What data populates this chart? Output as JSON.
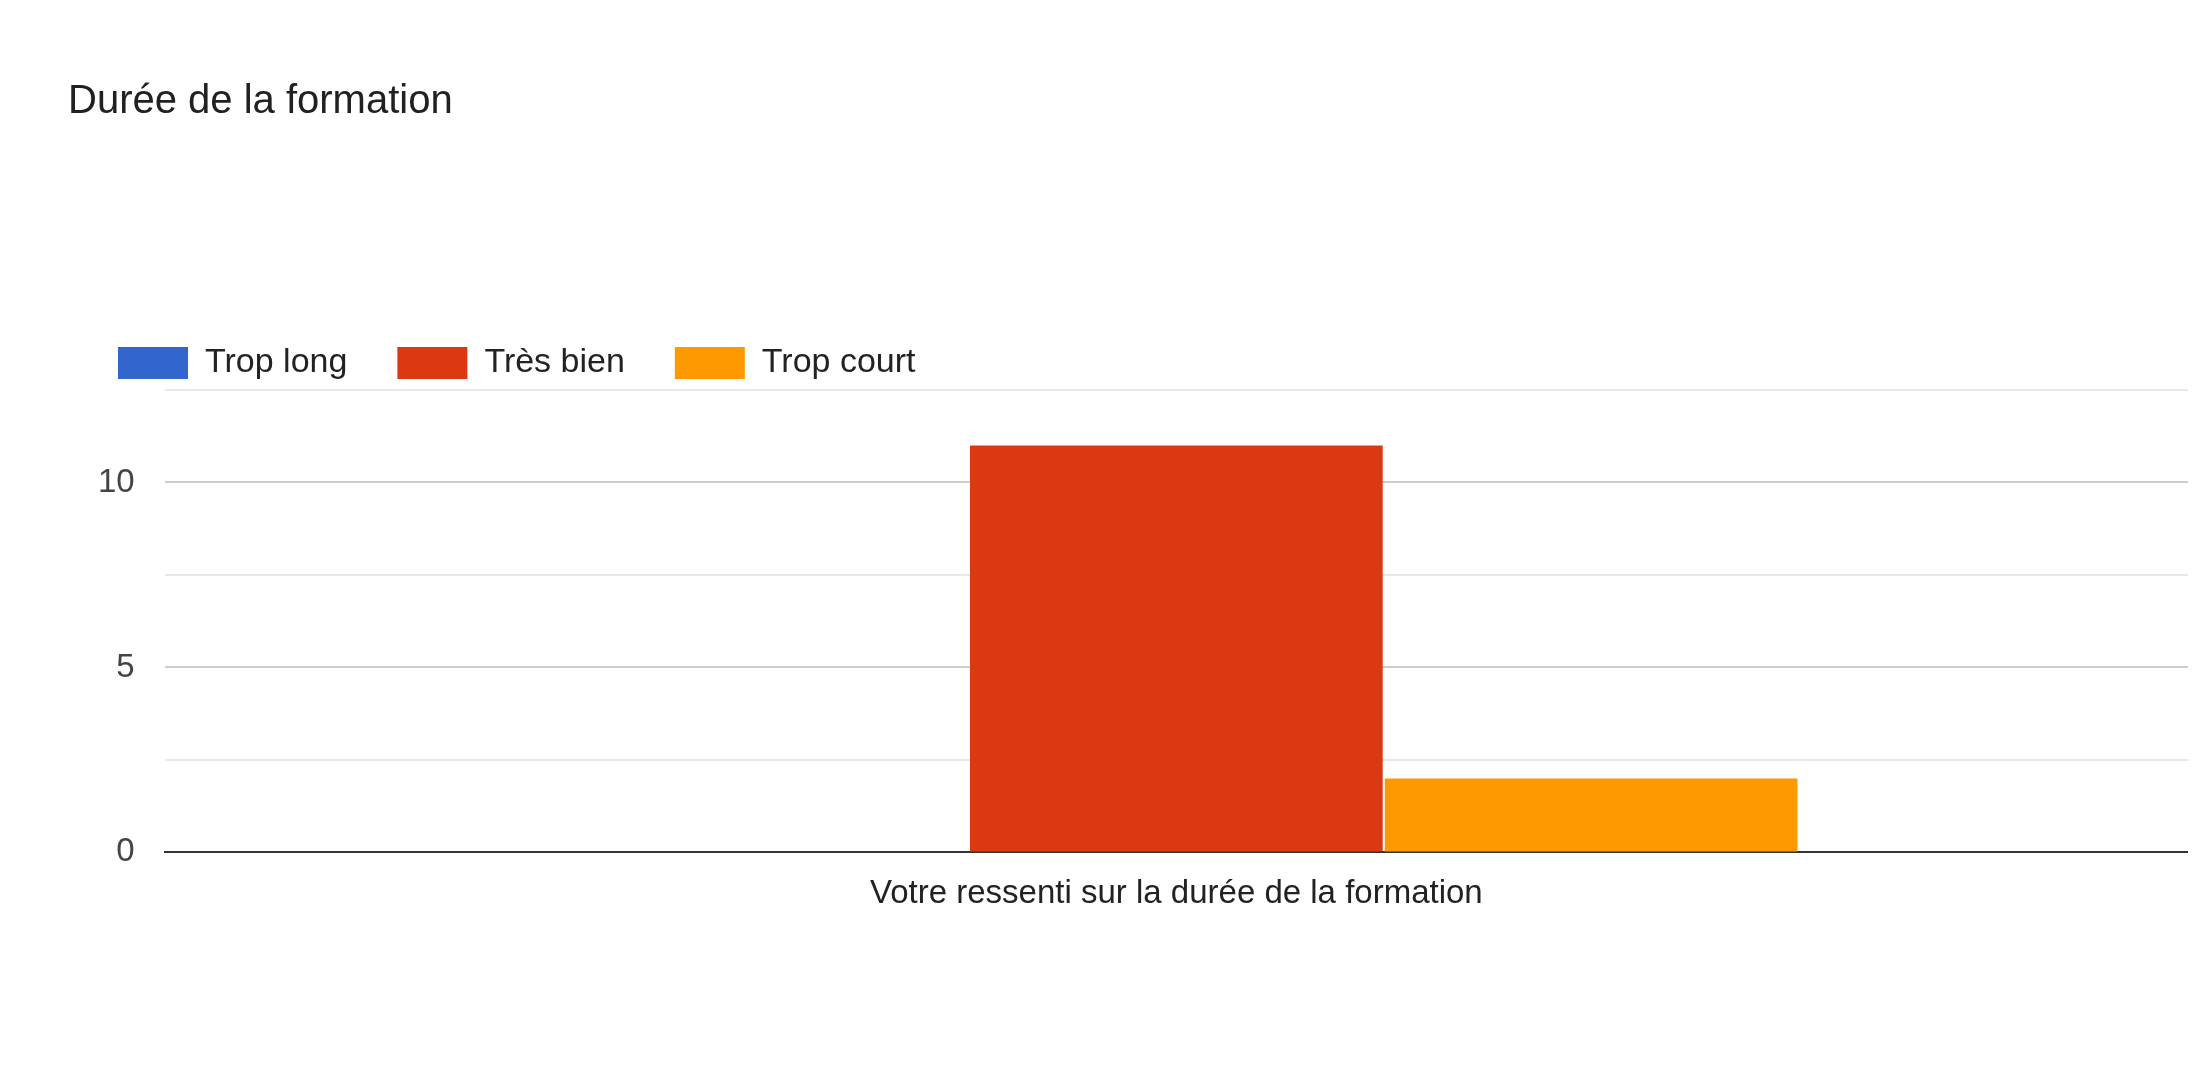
{
  "chart_data": {
    "type": "bar",
    "title": "Durée de la formation",
    "categories": [
      "Votre ressenti sur la durée de la formation"
    ],
    "series": [
      {
        "name": "Trop long",
        "color": "#3366cc",
        "values": [
          0
        ]
      },
      {
        "name": "Très bien",
        "color": "#dc3912",
        "values": [
          11
        ]
      },
      {
        "name": "Trop court",
        "color": "#ff9900",
        "values": [
          2
        ]
      }
    ],
    "ylim": [
      0,
      12.5
    ],
    "yticks": [
      0,
      {
        "value": 2.5,
        "label": null
      },
      5,
      {
        "value": 7.5,
        "label": null
      },
      10,
      {
        "value": 12.5,
        "label": null
      }
    ],
    "grid": "y",
    "legend": "top left"
  }
}
